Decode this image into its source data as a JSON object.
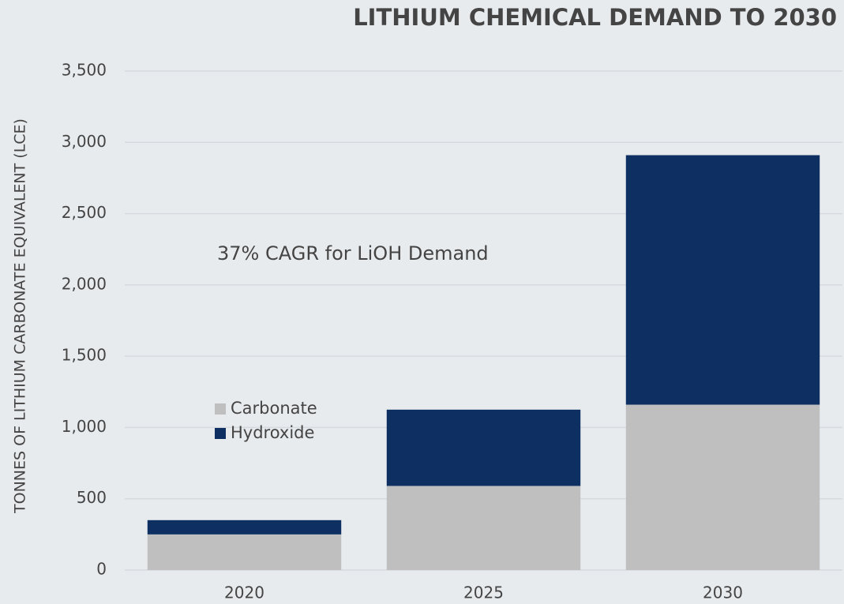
{
  "chart_data": {
    "type": "bar",
    "stacked": true,
    "title": "LITHIUM CHEMICAL DEMAND TO 2030",
    "y_axis_label": "TONNES OF LITHIUM CARBONATE EQUIVALENT (LCE)",
    "annotation": "37% CAGR for LiOH Demand",
    "categories": [
      "2020",
      "2025",
      "2030"
    ],
    "series": [
      {
        "name": "Carbonate",
        "color": "#bfbfbf",
        "values": [
          250,
          590,
          1160
        ]
      },
      {
        "name": "Hydroxide",
        "color": "#0d2f62",
        "values": [
          100,
          535,
          1750
        ]
      }
    ],
    "ylim": [
      0,
      3500
    ],
    "yticks": [
      0,
      500,
      {
        "value": 1000,
        "label": "1,000"
      },
      {
        "value": 1500,
        "label": "1,500"
      },
      {
        "value": 2000,
        "label": "2,000"
      },
      {
        "value": 2500,
        "label": "2,500"
      },
      {
        "value": 3000,
        "label": "3,000"
      },
      {
        "value": 3500,
        "label": "3,500"
      }
    ],
    "grid": true
  }
}
